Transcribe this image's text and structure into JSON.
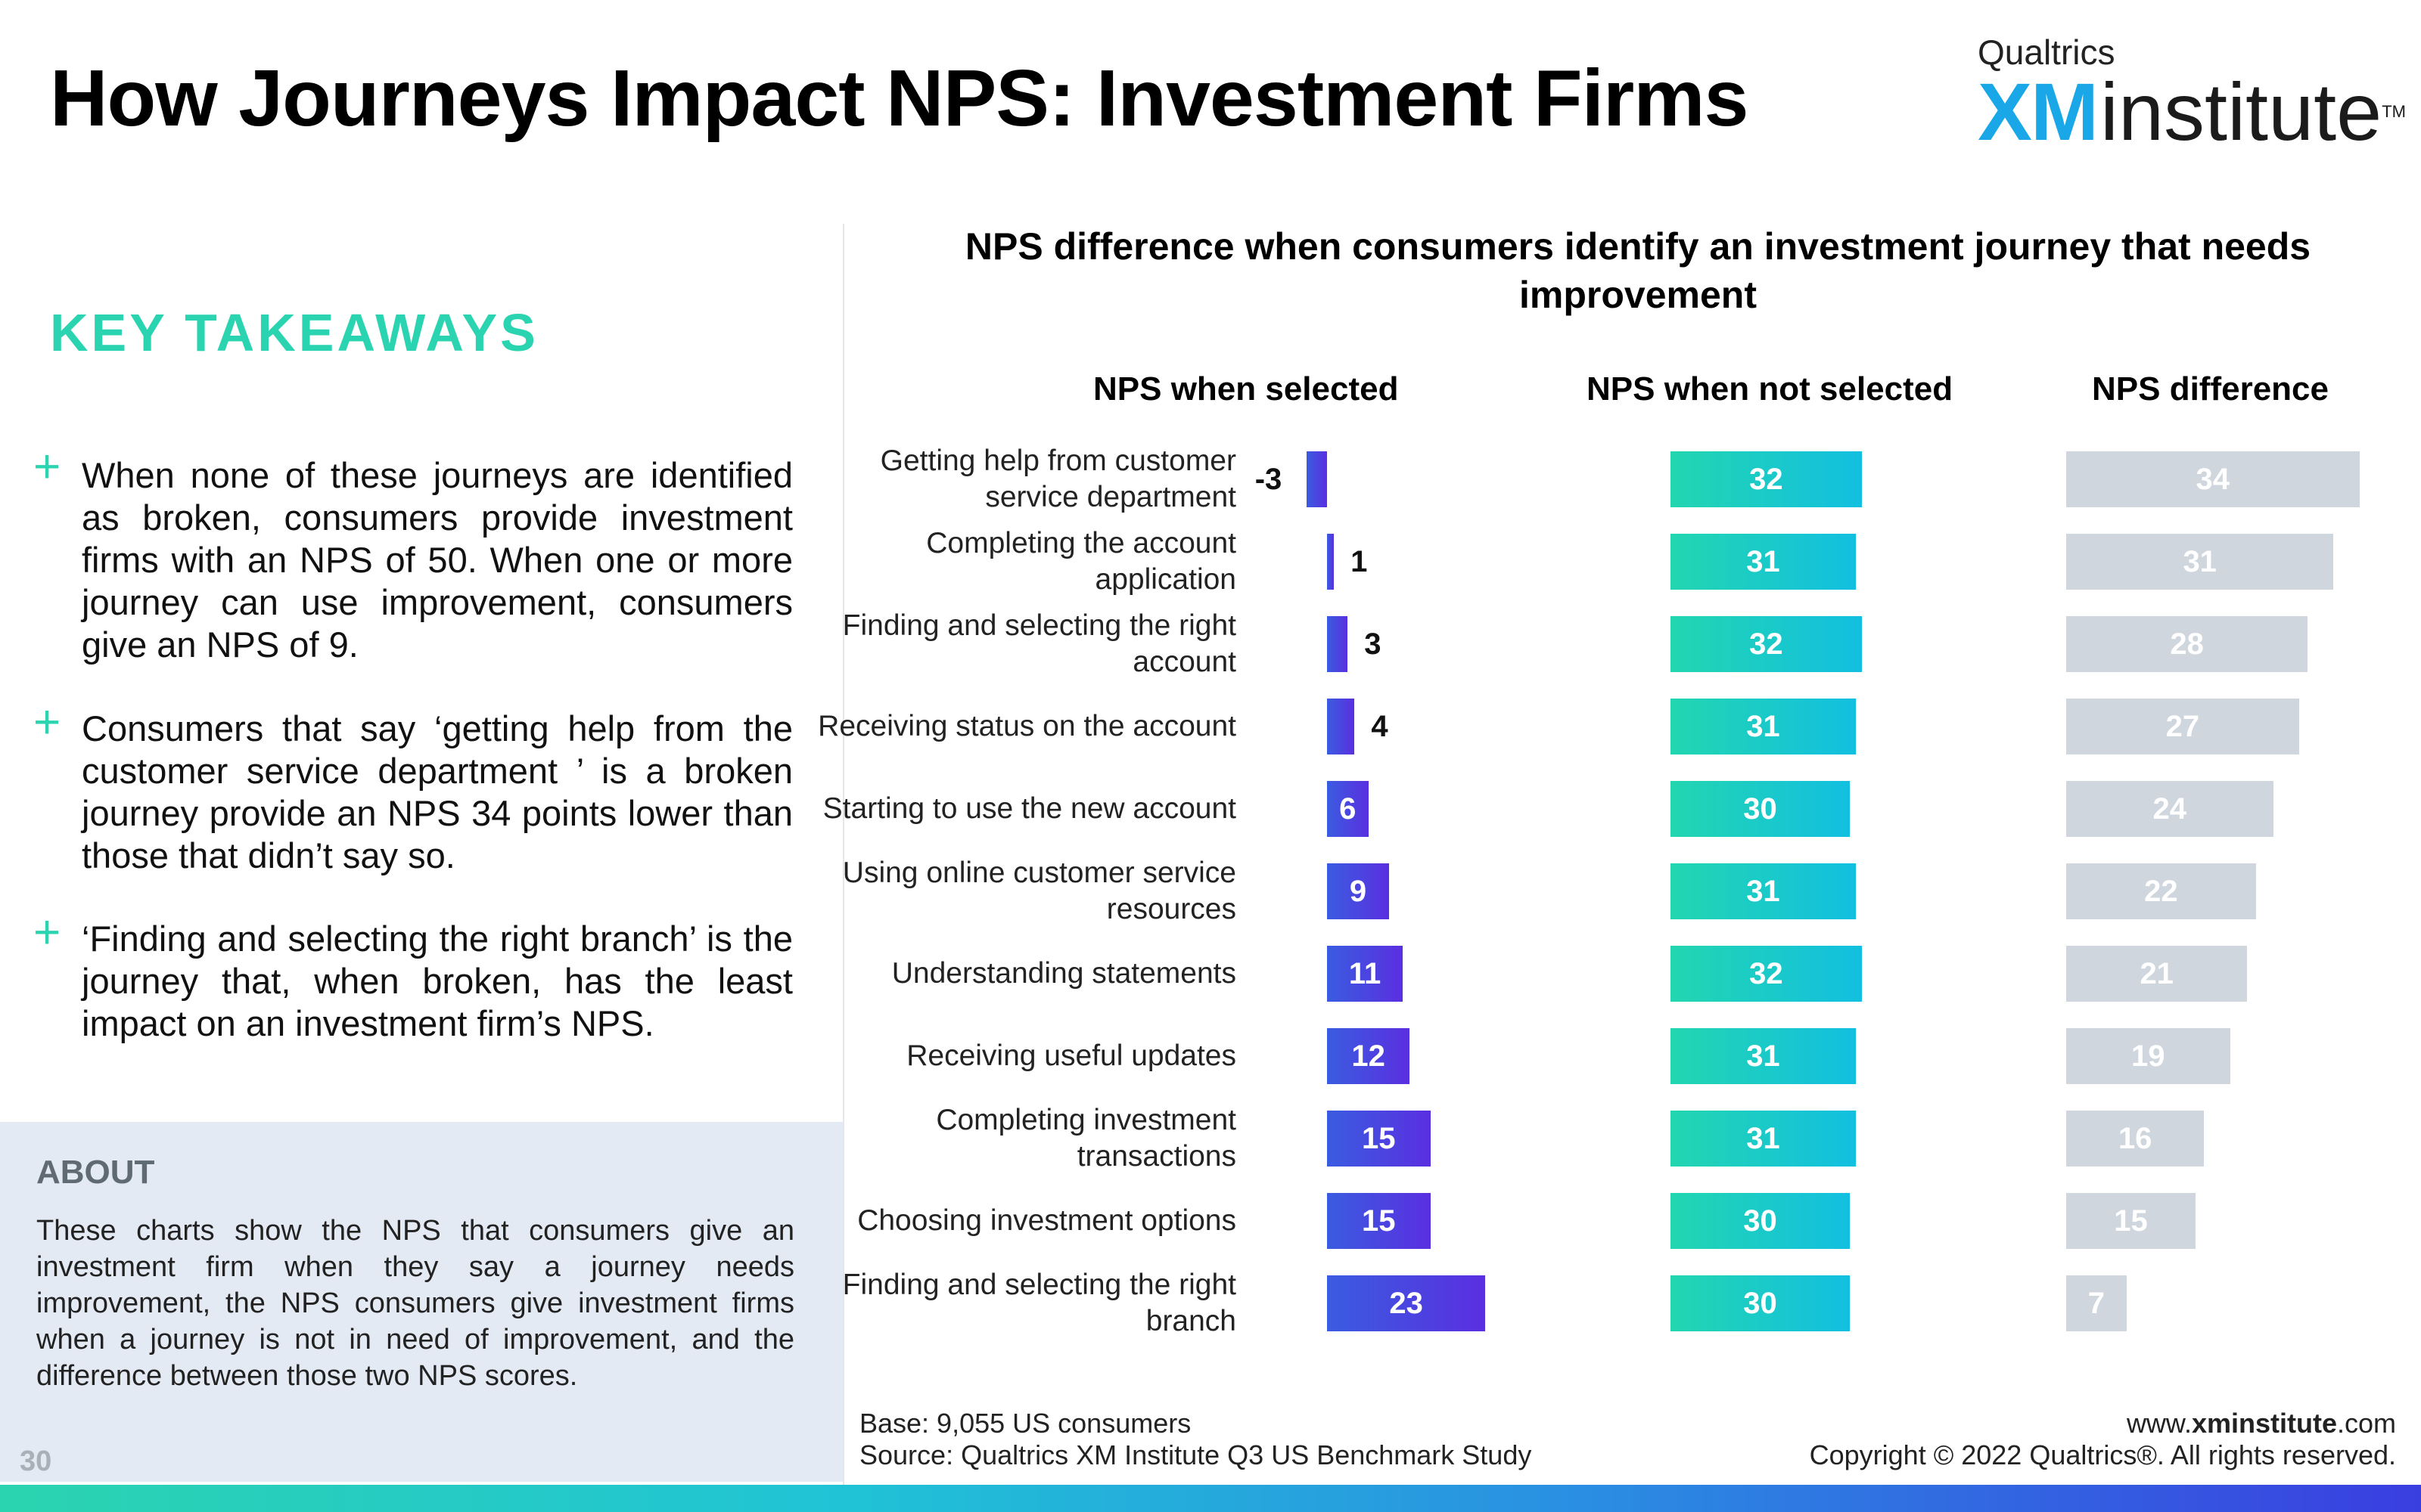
{
  "header": {
    "title": "How Journeys Impact NPS: Investment Firms",
    "logo_top": "Qualtrics",
    "logo_xm": "XM",
    "logo_institute": "institute",
    "logo_tm": "TM"
  },
  "takeaways": {
    "heading": "KEY TAKEAWAYS",
    "items": [
      "When none of these journeys are identified as broken, consumers provide investment firms with an NPS of 50. When one or more journey can use improvement, consumers give an NPS of 9.",
      "Consumers that say ‘getting help from the customer service department ’ is a broken journey provide an NPS 34 points lower than those that didn’t say so.",
      "‘Finding and selecting the right branch’ is the journey that, when broken, has the least impact on an investment firm’s NPS."
    ]
  },
  "about": {
    "heading": "ABOUT",
    "text": "These charts show the NPS that consumers give an investment firm when they say a journey needs improvement, the NPS consumers give investment firms when a journey is not in need of improvement, and the difference between those two NPS scores."
  },
  "page_number": "30",
  "footer": {
    "base": "Base: 9,055 US consumers",
    "source": "Source: Qualtrics XM Institute Q3 US Benchmark Study",
    "url_prefix": "www.",
    "url_bold": "xminstitute",
    "url_suffix": ".com",
    "copyright": "Copyright © 2022 Qualtrics®. All rights reserved."
  },
  "colors": {
    "accent_green": "#2bd4b0",
    "selected_gradient": [
      "#3a5ce0",
      "#5a2fe0"
    ],
    "not_selected_gradient": [
      "#22d6b0",
      "#12bfe0"
    ],
    "difference_bar": "#cfd6dd"
  },
  "chart_data": {
    "type": "bar",
    "orientation": "horizontal",
    "title": "NPS difference when consumers identify an investment journey that needs improvement",
    "categories": [
      "Getting help from customer service department",
      "Completing the account application",
      "Finding and selecting the right account",
      "Receiving status on the account",
      "Starting to use the new account",
      "Using online customer service resources",
      "Understanding statements",
      "Receiving useful updates",
      "Completing investment transactions",
      "Choosing investment options",
      "Finding and selecting the right branch"
    ],
    "series": [
      {
        "name": "NPS when selected",
        "values": [
          -3,
          1,
          3,
          4,
          6,
          9,
          11,
          12,
          15,
          15,
          23
        ]
      },
      {
        "name": "NPS when not selected",
        "values": [
          32,
          31,
          32,
          31,
          30,
          31,
          32,
          31,
          31,
          30,
          30
        ]
      },
      {
        "name": "NPS difference",
        "values": [
          34,
          31,
          28,
          27,
          24,
          22,
          21,
          19,
          16,
          15,
          7
        ]
      }
    ],
    "grid": false,
    "legend": "none"
  }
}
